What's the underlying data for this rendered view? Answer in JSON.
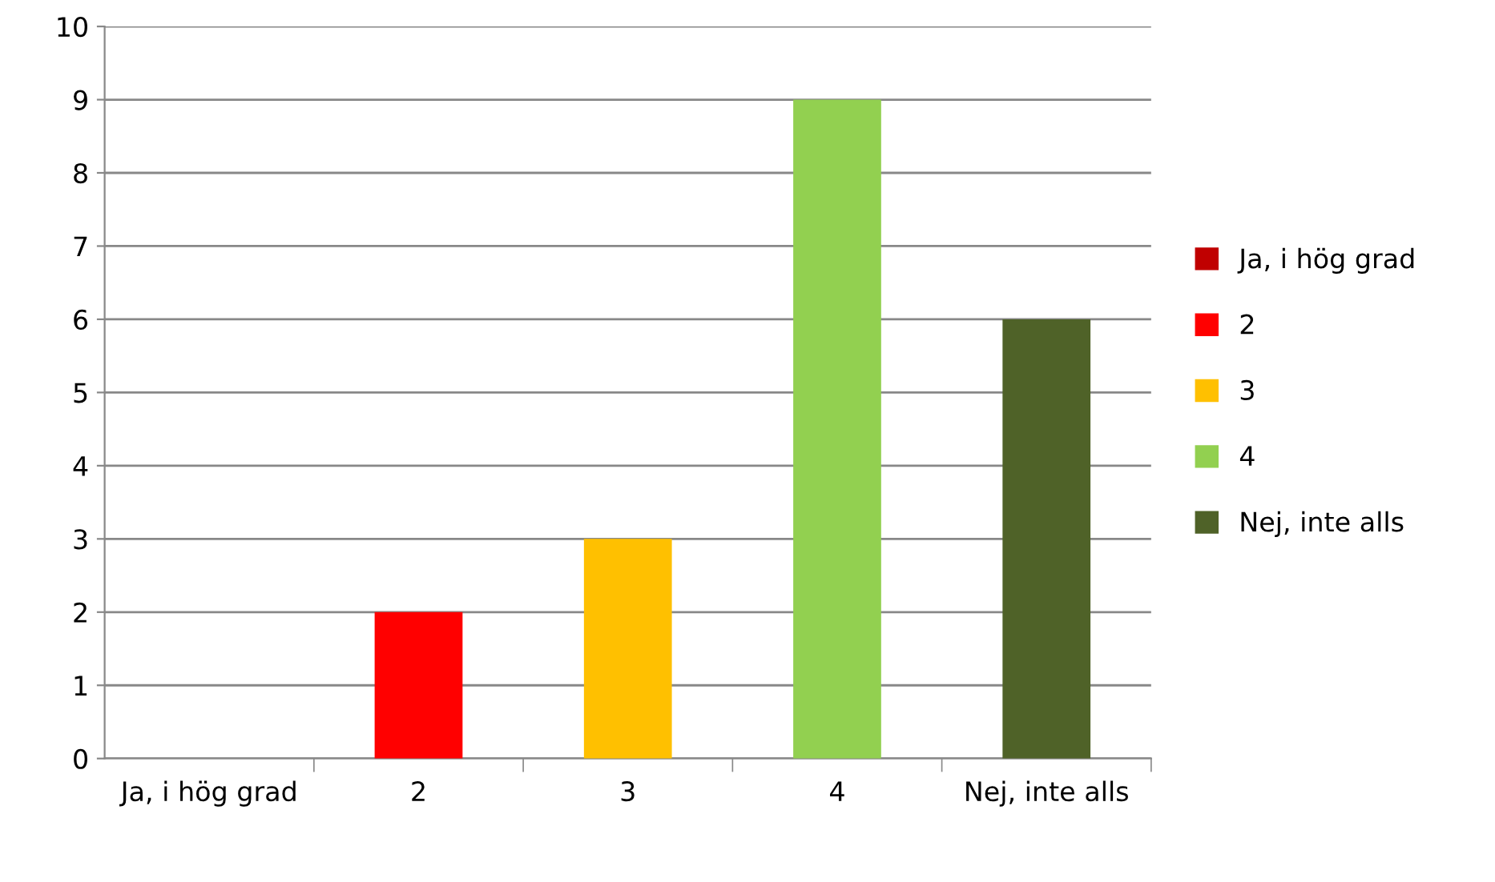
{
  "chart_data": {
    "type": "bar",
    "categories": [
      "Ja, i hög grad",
      "2",
      "3",
      "4",
      "Nej, inte alls"
    ],
    "series": [
      {
        "name": "Ja, i hög grad",
        "color": "#c00000",
        "values": [
          0,
          null,
          null,
          null,
          null
        ]
      },
      {
        "name": "2",
        "color": "#ff0000",
        "values": [
          null,
          2,
          null,
          null,
          null
        ]
      },
      {
        "name": "3",
        "color": "#ffc000",
        "values": [
          null,
          null,
          3,
          null,
          null
        ]
      },
      {
        "name": "4",
        "color": "#92d050",
        "values": [
          null,
          null,
          null,
          9,
          null
        ]
      },
      {
        "name": "Nej, inte alls",
        "color": "#4f6228",
        "values": [
          null,
          null,
          null,
          null,
          6
        ]
      }
    ],
    "ylim": [
      0,
      10
    ],
    "yticks": [
      0,
      1,
      2,
      3,
      4,
      5,
      6,
      7,
      8,
      9,
      10
    ],
    "grid": "y",
    "legend": "right"
  }
}
